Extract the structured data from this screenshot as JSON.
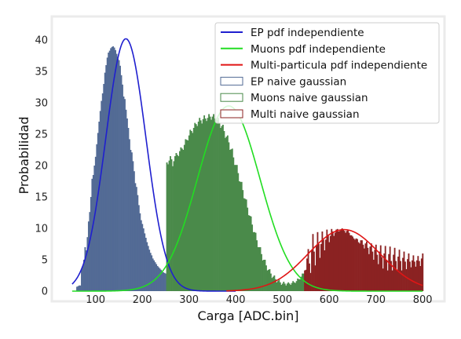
{
  "chart_data": {
    "type": "bar",
    "xlabel": "Carga [ADC.bin]",
    "ylabel": "Probabilidad",
    "xlim": [
      25,
      825
    ],
    "ylim": [
      0,
      43
    ],
    "xticks": [
      100,
      200,
      300,
      400,
      500,
      600,
      700,
      800
    ],
    "yticks": [
      0,
      5,
      10,
      15,
      20,
      25,
      30,
      35,
      40
    ],
    "grid": false,
    "legend_position": "top-right",
    "colors": {
      "ep_line": "#1f1fcf",
      "muons_line": "#22dd22",
      "multi_line": "#e01515",
      "ep_hist": "#536b95",
      "muons_hist": "#4a8a4a",
      "multi_hist": "#8b2222"
    },
    "lines": [
      {
        "name": "EP pdf independiente",
        "kind": "gaussian",
        "mu": 165,
        "sigma": 43,
        "amplitude": 40.2,
        "x_range": [
          50,
          400
        ]
      },
      {
        "name": "Muons pdf independiente",
        "kind": "gaussian",
        "mu": 385,
        "sigma": 67,
        "amplitude": 29.5,
        "x_range": [
          50,
          800
        ]
      },
      {
        "name": "Multi-particula pdf independiente",
        "kind": "gaussian",
        "mu": 632,
        "sigma": 77,
        "amplitude": 9.8,
        "x_range": [
          380,
          800
        ]
      }
    ],
    "histograms": [
      {
        "name": "EP naive gaussian",
        "x": [
          50,
          52.5,
          55,
          57.5,
          60,
          62.5,
          65,
          67.5,
          70,
          72.5,
          75,
          77.5,
          80,
          82.5,
          85,
          87.5,
          90,
          92.5,
          95,
          97.5,
          100,
          102.5,
          105,
          107.5,
          110,
          112.5,
          115,
          117.5,
          120,
          122.5,
          125,
          127.5,
          130,
          132.5,
          135,
          137.5,
          140,
          142.5,
          145,
          147.5,
          150,
          152.5,
          155,
          157.5,
          160,
          162.5,
          165,
          167.5,
          170,
          172.5,
          175,
          177.5,
          180,
          182.5,
          185,
          187.5,
          190,
          192.5,
          195,
          197.5,
          200,
          202.5,
          205,
          207.5,
          210,
          212.5,
          215,
          217.5,
          220,
          222.5,
          225,
          227.5,
          230,
          232.5,
          235,
          237.5,
          240,
          242.5,
          245,
          247.5,
          250
        ],
        "values": [
          0,
          0,
          0,
          0,
          0.7,
          0.8,
          0.9,
          0.9,
          3.5,
          4,
          5,
          7,
          6.5,
          8.6,
          11.1,
          12.6,
          15,
          17.9,
          18.5,
          20,
          21.4,
          23.4,
          25.2,
          27,
          28.7,
          30.3,
          31.5,
          33,
          34.8,
          36,
          37.2,
          38,
          38.3,
          38.7,
          38.9,
          39,
          38.8,
          38.4,
          37.8,
          37,
          36.8,
          35.9,
          34.4,
          32.9,
          31,
          30.6,
          28.9,
          27.5,
          26,
          24.2,
          22.5,
          22.1,
          20.7,
          19.1,
          17.2,
          16.6,
          15.3,
          13.7,
          12.4,
          11.3,
          10.7,
          10,
          9.2,
          8.5,
          7.8,
          7.2,
          6.6,
          6.1,
          5.7,
          5.2,
          4.9,
          4.6,
          4.3,
          4,
          3.8,
          3.6,
          3.4,
          3.2,
          3,
          2.9,
          2.8
        ]
      },
      {
        "name": "Muons naive gaussian",
        "x": [
          252.5,
          255,
          257.5,
          260,
          262.5,
          265,
          267.5,
          270,
          272.5,
          275,
          277.5,
          280,
          282.5,
          285,
          287.5,
          290,
          292.5,
          295,
          297.5,
          300,
          302.5,
          305,
          307.5,
          310,
          312.5,
          315,
          317.5,
          320,
          322.5,
          325,
          327.5,
          330,
          332.5,
          335,
          337.5,
          340,
          342.5,
          345,
          347.5,
          350,
          352.5,
          355,
          357.5,
          360,
          362.5,
          365,
          367.5,
          370,
          372.5,
          375,
          377.5,
          380,
          382.5,
          385,
          387.5,
          390,
          392.5,
          395,
          397.5,
          400,
          402.5,
          405,
          407.5,
          410,
          412.5,
          415,
          417.5,
          420,
          422.5,
          425,
          427.5,
          430,
          432.5,
          435,
          437.5,
          440,
          442.5,
          445,
          447.5,
          450,
          452.5,
          455,
          457.5,
          460,
          462.5,
          465,
          467.5,
          470,
          472.5,
          475,
          477.5,
          480,
          482.5,
          485,
          487.5,
          490,
          492.5,
          495,
          497.5,
          500,
          502.5,
          505,
          507.5,
          510,
          512.5,
          515,
          517.5,
          520,
          522.5,
          525,
          527.5,
          530,
          532.5,
          535,
          537.5,
          540,
          542.5,
          545
        ],
        "values": [
          20.5,
          20.2,
          20.8,
          21.5,
          21,
          19.9,
          20.7,
          21.5,
          22,
          21.7,
          21.5,
          22.3,
          22.9,
          22.7,
          22.5,
          23.3,
          24.2,
          24.1,
          24,
          24.8,
          25.7,
          25.5,
          25.2,
          26,
          26.8,
          26.6,
          26.3,
          27,
          27.6,
          27.2,
          26.7,
          27.4,
          28,
          27.5,
          27.1,
          27.6,
          28.2,
          27.8,
          27.3,
          27.8,
          28.2,
          27.5,
          26.9,
          27.3,
          27.6,
          26.8,
          26,
          26.3,
          26.5,
          25.5,
          24.4,
          24.6,
          24.8,
          23.7,
          22.5,
          22.6,
          22.7,
          21.3,
          20.1,
          20.1,
          20.1,
          18.8,
          17.5,
          17.4,
          17.4,
          16.1,
          14.8,
          14.7,
          14.6,
          13.3,
          12.1,
          12,
          11.9,
          10.6,
          9.4,
          9.4,
          9.3,
          8.1,
          7,
          7,
          7,
          5.9,
          4.9,
          5,
          5,
          4.1,
          3.3,
          3.4,
          3.5,
          2.8,
          2.1,
          2.3,
          2.5,
          1.9,
          1.4,
          1.6,
          1.8,
          1.4,
          1,
          1.2,
          1.5,
          1.2,
          0.9,
          1.2,
          1.4,
          1.2,
          1,
          1.3,
          1.6,
          1.4,
          1.3,
          1.6,
          2,
          1.9,
          1.9,
          2.3,
          2.8,
          2.8
        ]
      },
      {
        "name": "Multi naive gaussian",
        "x": [
          547.5,
          550,
          552.5,
          555,
          557.5,
          560,
          562.5,
          565,
          567.5,
          570,
          572.5,
          575,
          577.5,
          580,
          582.5,
          585,
          587.5,
          590,
          592.5,
          595,
          597.5,
          600,
          602.5,
          605,
          607.5,
          610,
          612.5,
          615,
          617.5,
          620,
          622.5,
          625,
          627.5,
          630,
          632.5,
          635,
          637.5,
          640,
          642.5,
          645,
          647.5,
          650,
          652.5,
          655,
          657.5,
          660,
          662.5,
          665,
          667.5,
          670,
          672.5,
          675,
          677.5,
          680,
          682.5,
          685,
          687.5,
          690,
          692.5,
          695,
          697.5,
          700,
          702.5,
          705,
          707.5,
          710,
          712.5,
          715,
          717.5,
          720,
          722.5,
          725,
          727.5,
          730,
          732.5,
          735,
          737.5,
          740,
          742.5,
          745,
          747.5,
          750,
          752.5,
          755,
          757.5,
          760,
          762.5,
          765,
          767.5,
          770,
          772.5,
          775,
          777.5,
          780,
          782.5,
          785,
          787.5,
          790,
          792.5,
          795,
          797.5,
          800
        ],
        "values": [
          3.3,
          3.4,
          5.2,
          6.7,
          4.4,
          2.9,
          6.6,
          9.1,
          6.3,
          4.1,
          7.2,
          9.4,
          7.5,
          5.3,
          7.5,
          9.5,
          8.2,
          6.5,
          8.2,
          9.8,
          9,
          7.8,
          8.8,
          9.9,
          9.5,
          8.8,
          9.3,
          9.8,
          9.9,
          9.5,
          9.6,
          9.8,
          10,
          9.8,
          9.6,
          9.3,
          9.6,
          9.7,
          9.3,
          8.9,
          8.9,
          8.7,
          8.4,
          8.2,
          8.4,
          8.3,
          7.8,
          7.6,
          8.1,
          8.1,
          7.4,
          6.8,
          7.6,
          7.9,
          6.9,
          5.9,
          7.1,
          7.6,
          6.3,
          5,
          6.6,
          7.4,
          5.8,
          4.3,
          6.3,
          7.3,
          5.4,
          3.6,
          6,
          7.2,
          5,
          3.3,
          5.9,
          7.1,
          4.8,
          3.3,
          5.8,
          6.9,
          4.8,
          3.3,
          5.5,
          6.6,
          4.8,
          3.3,
          5.3,
          6.3,
          4.7,
          3.5,
          5.1,
          6,
          4.7,
          3.8,
          4.9,
          5.7,
          4.7,
          3.9,
          4.9,
          5.6,
          4.8,
          4,
          5.2,
          6
        ]
      }
    ]
  }
}
